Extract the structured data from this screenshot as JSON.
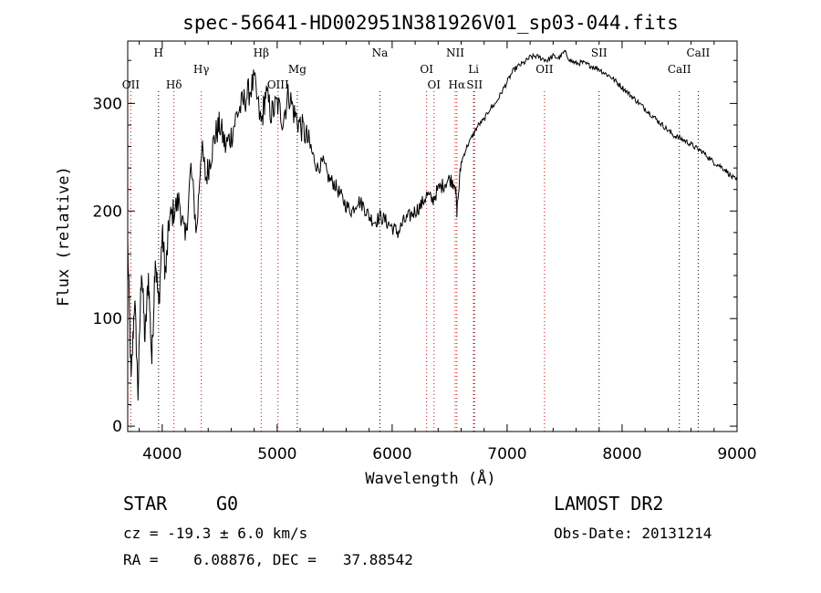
{
  "chart_data": {
    "type": "line",
    "title": "spec-56641-HD002951N381926V01_sp03-044.fits",
    "xlabel": "Wavelength (Å)",
    "ylabel": "Flux (relative)",
    "xlim": [
      3700,
      9000
    ],
    "ylim": [
      -5,
      358
    ],
    "xticks": [
      4000,
      5000,
      6000,
      7000,
      8000,
      9000
    ],
    "yticks": [
      0,
      100,
      200,
      300
    ],
    "series": [
      {
        "name": "spectrum",
        "x": [
          3700,
          3730,
          3760,
          3790,
          3820,
          3850,
          3880,
          3910,
          3940,
          3970,
          4000,
          4030,
          4060,
          4100,
          4150,
          4200,
          4250,
          4300,
          4340,
          4380,
          4420,
          4460,
          4500,
          4550,
          4600,
          4650,
          4700,
          4750,
          4800,
          4861,
          4900,
          4950,
          5000,
          5050,
          5100,
          5150,
          5200,
          5250,
          5300,
          5350,
          5400,
          5450,
          5500,
          5550,
          5600,
          5650,
          5700,
          5750,
          5800,
          5850,
          5900,
          5950,
          6000,
          6050,
          6100,
          6150,
          6200,
          6250,
          6300,
          6350,
          6400,
          6450,
          6500,
          6550,
          6563,
          6600,
          6650,
          6700,
          6750,
          6800,
          6850,
          6900,
          6950,
          7000,
          7050,
          7100,
          7150,
          7200,
          7250,
          7300,
          7350,
          7400,
          7450,
          7500,
          7550,
          7600,
          7650,
          7700,
          7750,
          7800,
          7850,
          7900,
          7950,
          8000,
          8050,
          8100,
          8150,
          8200,
          8250,
          8300,
          8350,
          8400,
          8450,
          8500,
          8550,
          8600,
          8650,
          8700,
          8750,
          8800,
          8850,
          8900,
          8950,
          9000
        ],
        "values": [
          170,
          40,
          120,
          30,
          150,
          80,
          140,
          60,
          160,
          110,
          180,
          140,
          190,
          200,
          210,
          170,
          240,
          180,
          260,
          230,
          250,
          270,
          280,
          260,
          270,
          290,
          300,
          310,
          320,
          280,
          310,
          290,
          300,
          285,
          310,
          290,
          280,
          270,
          255,
          240,
          245,
          230,
          225,
          215,
          205,
          200,
          210,
          205,
          195,
          190,
          195,
          190,
          185,
          180,
          190,
          195,
          200,
          205,
          215,
          210,
          220,
          225,
          230,
          225,
          200,
          245,
          260,
          270,
          280,
          285,
          295,
          300,
          310,
          320,
          330,
          335,
          338,
          343,
          344,
          342,
          340,
          344,
          342,
          348,
          340,
          337,
          338,
          336,
          334,
          332,
          328,
          325,
          320,
          315,
          310,
          305,
          300,
          295,
          290,
          285,
          280,
          275,
          270,
          268,
          265,
          262,
          258,
          255,
          250,
          245,
          242,
          238,
          232,
          228
        ]
      }
    ],
    "lines": [
      {
        "label": "OII",
        "wave": 3727,
        "row": 3,
        "color": "#cc0000"
      },
      {
        "label": "H",
        "wave": 3968,
        "row": 1,
        "color": "#000000"
      },
      {
        "label": "Hδ",
        "wave": 4102,
        "row": 3,
        "color": "#cc0000"
      },
      {
        "label": "Hγ",
        "wave": 4340,
        "row": 2,
        "color": "#cc0000"
      },
      {
        "label": "Hβ",
        "wave": 4861,
        "row": 1,
        "color": "#cc0000"
      },
      {
        "label": "OIII",
        "wave": 5007,
        "row": 3,
        "color": "#cc0000"
      },
      {
        "label": "Mg",
        "wave": 5175,
        "row": 2,
        "color": "#000000"
      },
      {
        "label": "Na",
        "wave": 5893,
        "row": 1,
        "color": "#000000"
      },
      {
        "label": "OI",
        "wave": 6300,
        "row": 2,
        "color": "#cc0000"
      },
      {
        "label": "OI",
        "wave": 6364,
        "row": 3,
        "color": "#cc0000"
      },
      {
        "label": "NII",
        "wave": 6548,
        "row": 1,
        "color": "#cc0000"
      },
      {
        "label": "Hα",
        "wave": 6563,
        "row": 3,
        "color": "#cc0000"
      },
      {
        "label": "Li",
        "wave": 6708,
        "row": 2,
        "color": "#000000"
      },
      {
        "label": "SII",
        "wave": 6717,
        "row": 3,
        "color": "#cc0000"
      },
      {
        "label": "OII",
        "wave": 7325,
        "row": 4,
        "color": "#cc0000"
      },
      {
        "label": "SII",
        "wave": 7800,
        "row": 1,
        "color": "#000000"
      },
      {
        "label": "CaII",
        "wave": 8498,
        "row": 2,
        "color": "#000000"
      },
      {
        "label": "CaII",
        "wave": 8662,
        "row": 1,
        "color": "#000000"
      }
    ]
  },
  "info": {
    "class": "STAR",
    "subclass": "G0",
    "survey": "LAMOST DR2",
    "cz": "cz = -19.3 ± 6.0 km/s",
    "obs_date": "Obs-Date: 20131214",
    "coords": "RA =    6.08876, DEC =   37.88542"
  }
}
